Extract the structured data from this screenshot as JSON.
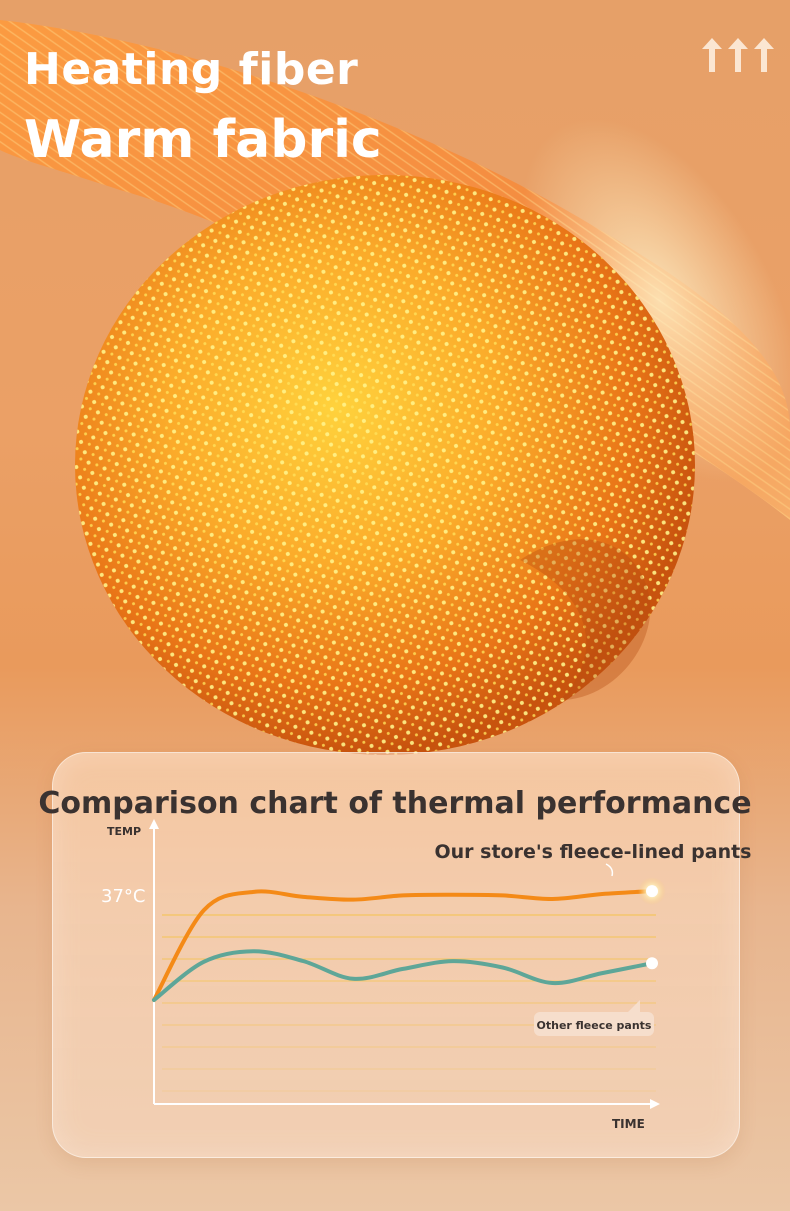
{
  "headline": {
    "line1": "Heating fiber",
    "line2": "Warm fabric"
  },
  "icons": {
    "arrows": "triple-up-arrow-icon",
    "fiber": "fiber-bundle-illustration"
  },
  "colors": {
    "ours": "#f48a17",
    "others": "#5ea698",
    "grid": "#f5c246",
    "title": "#3a3230"
  },
  "chart_data": {
    "type": "line",
    "title": "Comparison chart of thermal performance",
    "xlabel": "TIME",
    "ylabel": "TEMP",
    "y_tick_labels": [
      "37°C"
    ],
    "grid": true,
    "series": [
      {
        "name": "Our store's fleece-lined pants",
        "x": [
          0,
          1,
          2,
          3,
          4,
          5,
          6,
          7,
          8,
          9,
          10
        ],
        "values": [
          22,
          34.7,
          37.3,
          36.6,
          36.2,
          36.8,
          36.9,
          36.8,
          36.3,
          37.0,
          37.4
        ]
      },
      {
        "name": "Other fleece pants",
        "x": [
          0,
          1,
          2,
          3,
          4,
          5,
          6,
          7,
          8,
          9,
          10
        ],
        "values": [
          22,
          27.4,
          28.9,
          27.5,
          25.0,
          26.4,
          27.5,
          26.6,
          24.4,
          25.8,
          27.2
        ]
      }
    ]
  }
}
